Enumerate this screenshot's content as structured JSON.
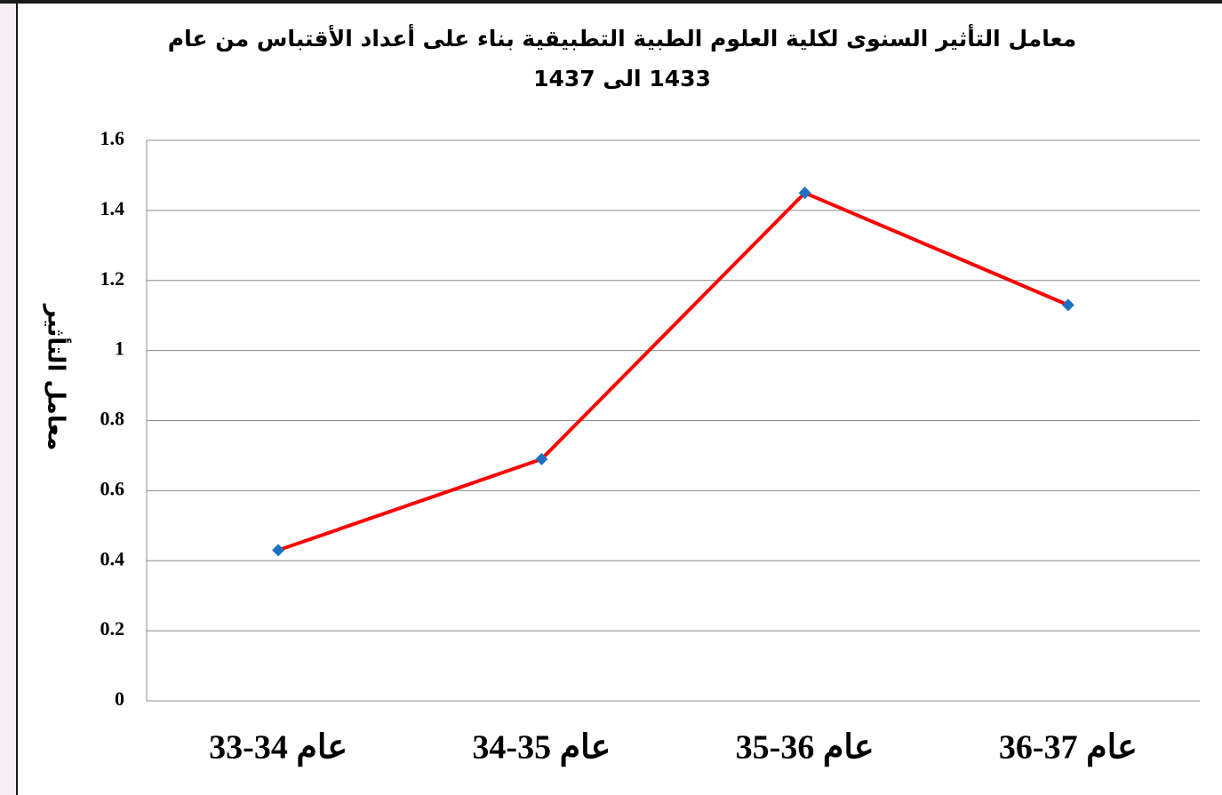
{
  "chart_data": {
    "type": "line",
    "title": [
      "معامل التأثير السنوى لكلية العلوم الطبية التطبيقية بناء على أعداد الأقتباس من عام",
      "1433 الى  1437"
    ],
    "y_label": "معامل التأثير",
    "categories": [
      "عام 34-33",
      "عام 35-34",
      "عام 36-35",
      "عام 37-36"
    ],
    "series": [
      {
        "name": null,
        "color": "#ff0000",
        "marker_color": "#1f70c1",
        "values": [
          0.43,
          0.69,
          1.45,
          1.13
        ]
      }
    ],
    "ylim": [
      0,
      1.6
    ],
    "yticks": [
      0,
      0.2,
      0.4,
      0.6,
      0.8,
      1,
      1.2,
      1.4,
      1.6
    ],
    "grid": true
  }
}
